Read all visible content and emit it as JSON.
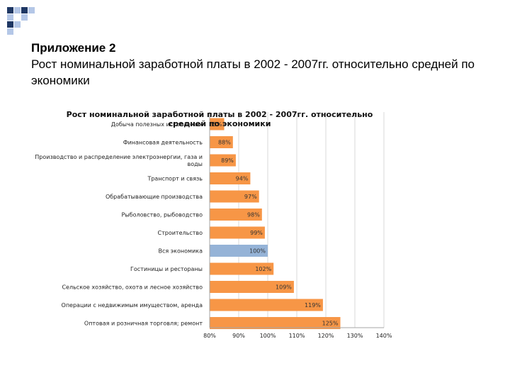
{
  "slide": {
    "heading_line1": "Приложение 2",
    "heading_line2": "Рост номинальной заработной платы в 2002 - 2007гг. относительно средней по экономики"
  },
  "colors": {
    "bar": "#F79646",
    "bar_highlight": "#95B3D7",
    "axis": "#A6A6A6",
    "grid": "#D9D9D9",
    "deco_dark": "#1F3864",
    "deco_light": "#B4C7E7"
  },
  "chart_data": {
    "type": "bar",
    "orientation": "horizontal",
    "title_line1": "Рост номинальной заработной платы в 2002 - 2007гг. относительно",
    "title_line2": "средней по экономики",
    "categories": [
      "Добыча полезных ископаемых",
      "Финансовая деятельность",
      "Производство и распределение электроэнергии, газа и воды",
      "Транспорт и связь",
      "Обрабатывающие производства",
      "Рыболовство, рыбоводство",
      "Строительство",
      "Вся экономика",
      "Гостиницы и рестораны",
      "Сельское хозяйство, охота и лесное хозяйство",
      "Операции с недвижимым имуществом, аренда",
      "Оптовая и розничная торговля; ремонт"
    ],
    "values": [
      85,
      88,
      89,
      94,
      97,
      98,
      99,
      100,
      102,
      109,
      119,
      125
    ],
    "value_labels": [
      "85%",
      "88%",
      "89%",
      "94%",
      "97%",
      "98%",
      "99%",
      "100%",
      "102%",
      "109%",
      "119%",
      "125%"
    ],
    "highlight_category": "Вся экономика",
    "xlim": [
      80,
      140
    ],
    "x_ticks": [
      80,
      90,
      100,
      110,
      120,
      130,
      140
    ],
    "x_tick_labels": [
      "80%",
      "90%",
      "100%",
      "110%",
      "120%",
      "130%",
      "140%"
    ],
    "grid": true,
    "legend": false
  }
}
